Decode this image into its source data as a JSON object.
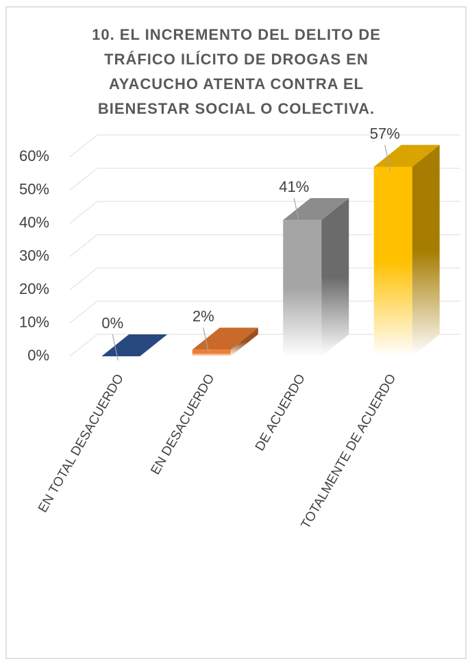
{
  "chart_data": {
    "type": "bar3d",
    "title_lines": [
      "10.   EL INCREMENTO DEL DELITO DE",
      "TRÁFICO ILÍCITO DE DROGAS EN",
      "AYACUCHO ATENTA CONTRA EL",
      "BIENESTAR SOCIAL O COLECTIVA."
    ],
    "categories": [
      "EN TOTAL DESACUERDO",
      "EN DESACUERDO",
      "DE ACUERDO",
      "TOTALMENTE DE ACUERDO"
    ],
    "values": [
      0,
      2,
      41,
      57
    ],
    "value_labels": [
      "0%",
      "2%",
      "41%",
      "57%"
    ],
    "colors": [
      "#2f5597",
      "#ed7d31",
      "#a5a5a5",
      "#ffc000"
    ],
    "ylim": [
      0,
      60
    ],
    "yticks": [
      {
        "value": 0,
        "label": "0%"
      },
      {
        "value": 10,
        "label": "10%"
      },
      {
        "value": 20,
        "label": "20%"
      },
      {
        "value": 30,
        "label": "30%"
      },
      {
        "value": 40,
        "label": "40%"
      },
      {
        "value": 50,
        "label": "50%"
      },
      {
        "value": 60,
        "label": "60%"
      }
    ],
    "grid": true
  }
}
